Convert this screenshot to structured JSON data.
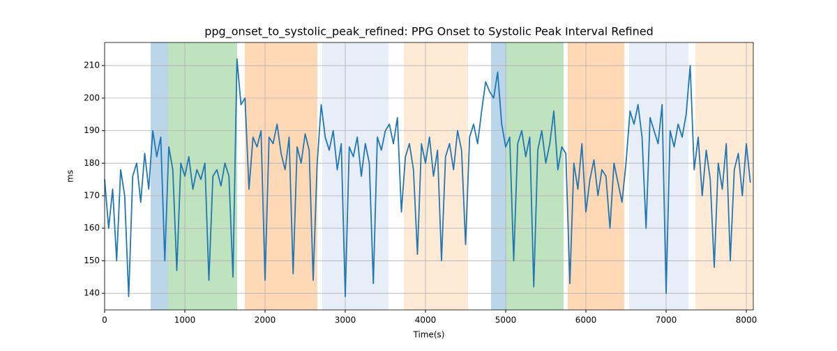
{
  "chart_data": {
    "type": "line",
    "title": "ppg_onset_to_systolic_peak_refined: PPG Onset to Systolic Peak Interval Refined",
    "xlabel": "Time(s)",
    "ylabel": "ms",
    "xlim": [
      0,
      8087
    ],
    "ylim": [
      134.9,
      217.1
    ],
    "xticks": [
      0,
      1000,
      2000,
      3000,
      4000,
      5000,
      6000,
      7000,
      8000
    ],
    "yticks": [
      140,
      150,
      160,
      170,
      180,
      190,
      200,
      210
    ],
    "grid": true,
    "spans": [
      {
        "start": 574,
        "end": 791,
        "color": "rgba(31,119,180,0.3)"
      },
      {
        "start": 791,
        "end": 1652,
        "color": "rgba(44,160,44,0.3)"
      },
      {
        "start": 1748,
        "end": 2652,
        "color": "rgba(255,127,14,0.3)"
      },
      {
        "start": 2713,
        "end": 3539,
        "color": "rgba(174,199,232,0.3)"
      },
      {
        "start": 3730,
        "end": 4530,
        "color": "rgba(255,187,120,0.3)"
      },
      {
        "start": 4817,
        "end": 5009,
        "color": "rgba(31,119,180,0.3)"
      },
      {
        "start": 5009,
        "end": 5722,
        "color": "rgba(44,160,44,0.3)"
      },
      {
        "start": 5774,
        "end": 6478,
        "color": "rgba(255,127,14,0.3)"
      },
      {
        "start": 6539,
        "end": 7278,
        "color": "rgba(174,199,232,0.3)"
      },
      {
        "start": 7365,
        "end": 8087,
        "color": "rgba(255,187,120,0.3)"
      }
    ],
    "x": [
      0,
      50,
      100,
      150,
      200,
      250,
      300,
      350,
      400,
      450,
      500,
      550,
      600,
      650,
      700,
      750,
      800,
      850,
      900,
      950,
      1000,
      1050,
      1100,
      1150,
      1200,
      1250,
      1300,
      1350,
      1400,
      1450,
      1500,
      1550,
      1600,
      1650,
      1700,
      1750,
      1800,
      1850,
      1900,
      1950,
      2000,
      2050,
      2100,
      2150,
      2200,
      2250,
      2300,
      2350,
      2400,
      2450,
      2500,
      2550,
      2600,
      2650,
      2700,
      2750,
      2800,
      2850,
      2900,
      2950,
      3000,
      3050,
      3100,
      3150,
      3200,
      3250,
      3300,
      3350,
      3400,
      3450,
      3500,
      3550,
      3600,
      3650,
      3700,
      3750,
      3800,
      3850,
      3900,
      3950,
      4000,
      4050,
      4100,
      4150,
      4200,
      4250,
      4300,
      4350,
      4400,
      4450,
      4500,
      4550,
      4600,
      4650,
      4700,
      4750,
      4800,
      4850,
      4900,
      4950,
      5000,
      5050,
      5100,
      5150,
      5200,
      5250,
      5300,
      5350,
      5400,
      5450,
      5500,
      5550,
      5600,
      5650,
      5700,
      5750,
      5800,
      5850,
      5900,
      5950,
      6000,
      6050,
      6100,
      6150,
      6200,
      6250,
      6300,
      6350,
      6400,
      6450,
      6500,
      6550,
      6600,
      6650,
      6700,
      6750,
      6800,
      6850,
      6900,
      6950,
      7000,
      7050,
      7100,
      7150,
      7200,
      7250,
      7300,
      7350,
      7400,
      7450,
      7500,
      7550,
      7600,
      7650,
      7700,
      7750,
      7800,
      7850,
      7900,
      7950,
      8000,
      8050
    ],
    "series": [
      {
        "color": "#1f77b4",
        "values": [
          175,
          160,
          172,
          150,
          178,
          170,
          139,
          176,
          180,
          168,
          183,
          172,
          190,
          182,
          188,
          150,
          185,
          178,
          147,
          180,
          176,
          182,
          172,
          178,
          175,
          180,
          144,
          176,
          178,
          173,
          180,
          176,
          145,
          212,
          198,
          200,
          172,
          188,
          185,
          190,
          144,
          188,
          186,
          192,
          183,
          178,
          188,
          146,
          185,
          180,
          189,
          184,
          144,
          180,
          198,
          188,
          184,
          190,
          178,
          186,
          139,
          185,
          182,
          188,
          176,
          186,
          180,
          143,
          188,
          184,
          190,
          192,
          186,
          194,
          165,
          182,
          186,
          178,
          152,
          186,
          180,
          188,
          176,
          184,
          150,
          182,
          186,
          178,
          190,
          184,
          155,
          188,
          192,
          186,
          196,
          205,
          202,
          200,
          208,
          192,
          185,
          188,
          150,
          186,
          190,
          182,
          188,
          142,
          184,
          190,
          180,
          186,
          196,
          178,
          185,
          183,
          143,
          180,
          172,
          186,
          165,
          175,
          181,
          170,
          178,
          176,
          160,
          180,
          174,
          168,
          180,
          196,
          192,
          198,
          188,
          160,
          194,
          190,
          186,
          198,
          140,
          190,
          185,
          192,
          188,
          195,
          210,
          178,
          188,
          170,
          184,
          175,
          148,
          180,
          172,
          186,
          150,
          178,
          183,
          170,
          186,
          174
        ]
      }
    ]
  }
}
